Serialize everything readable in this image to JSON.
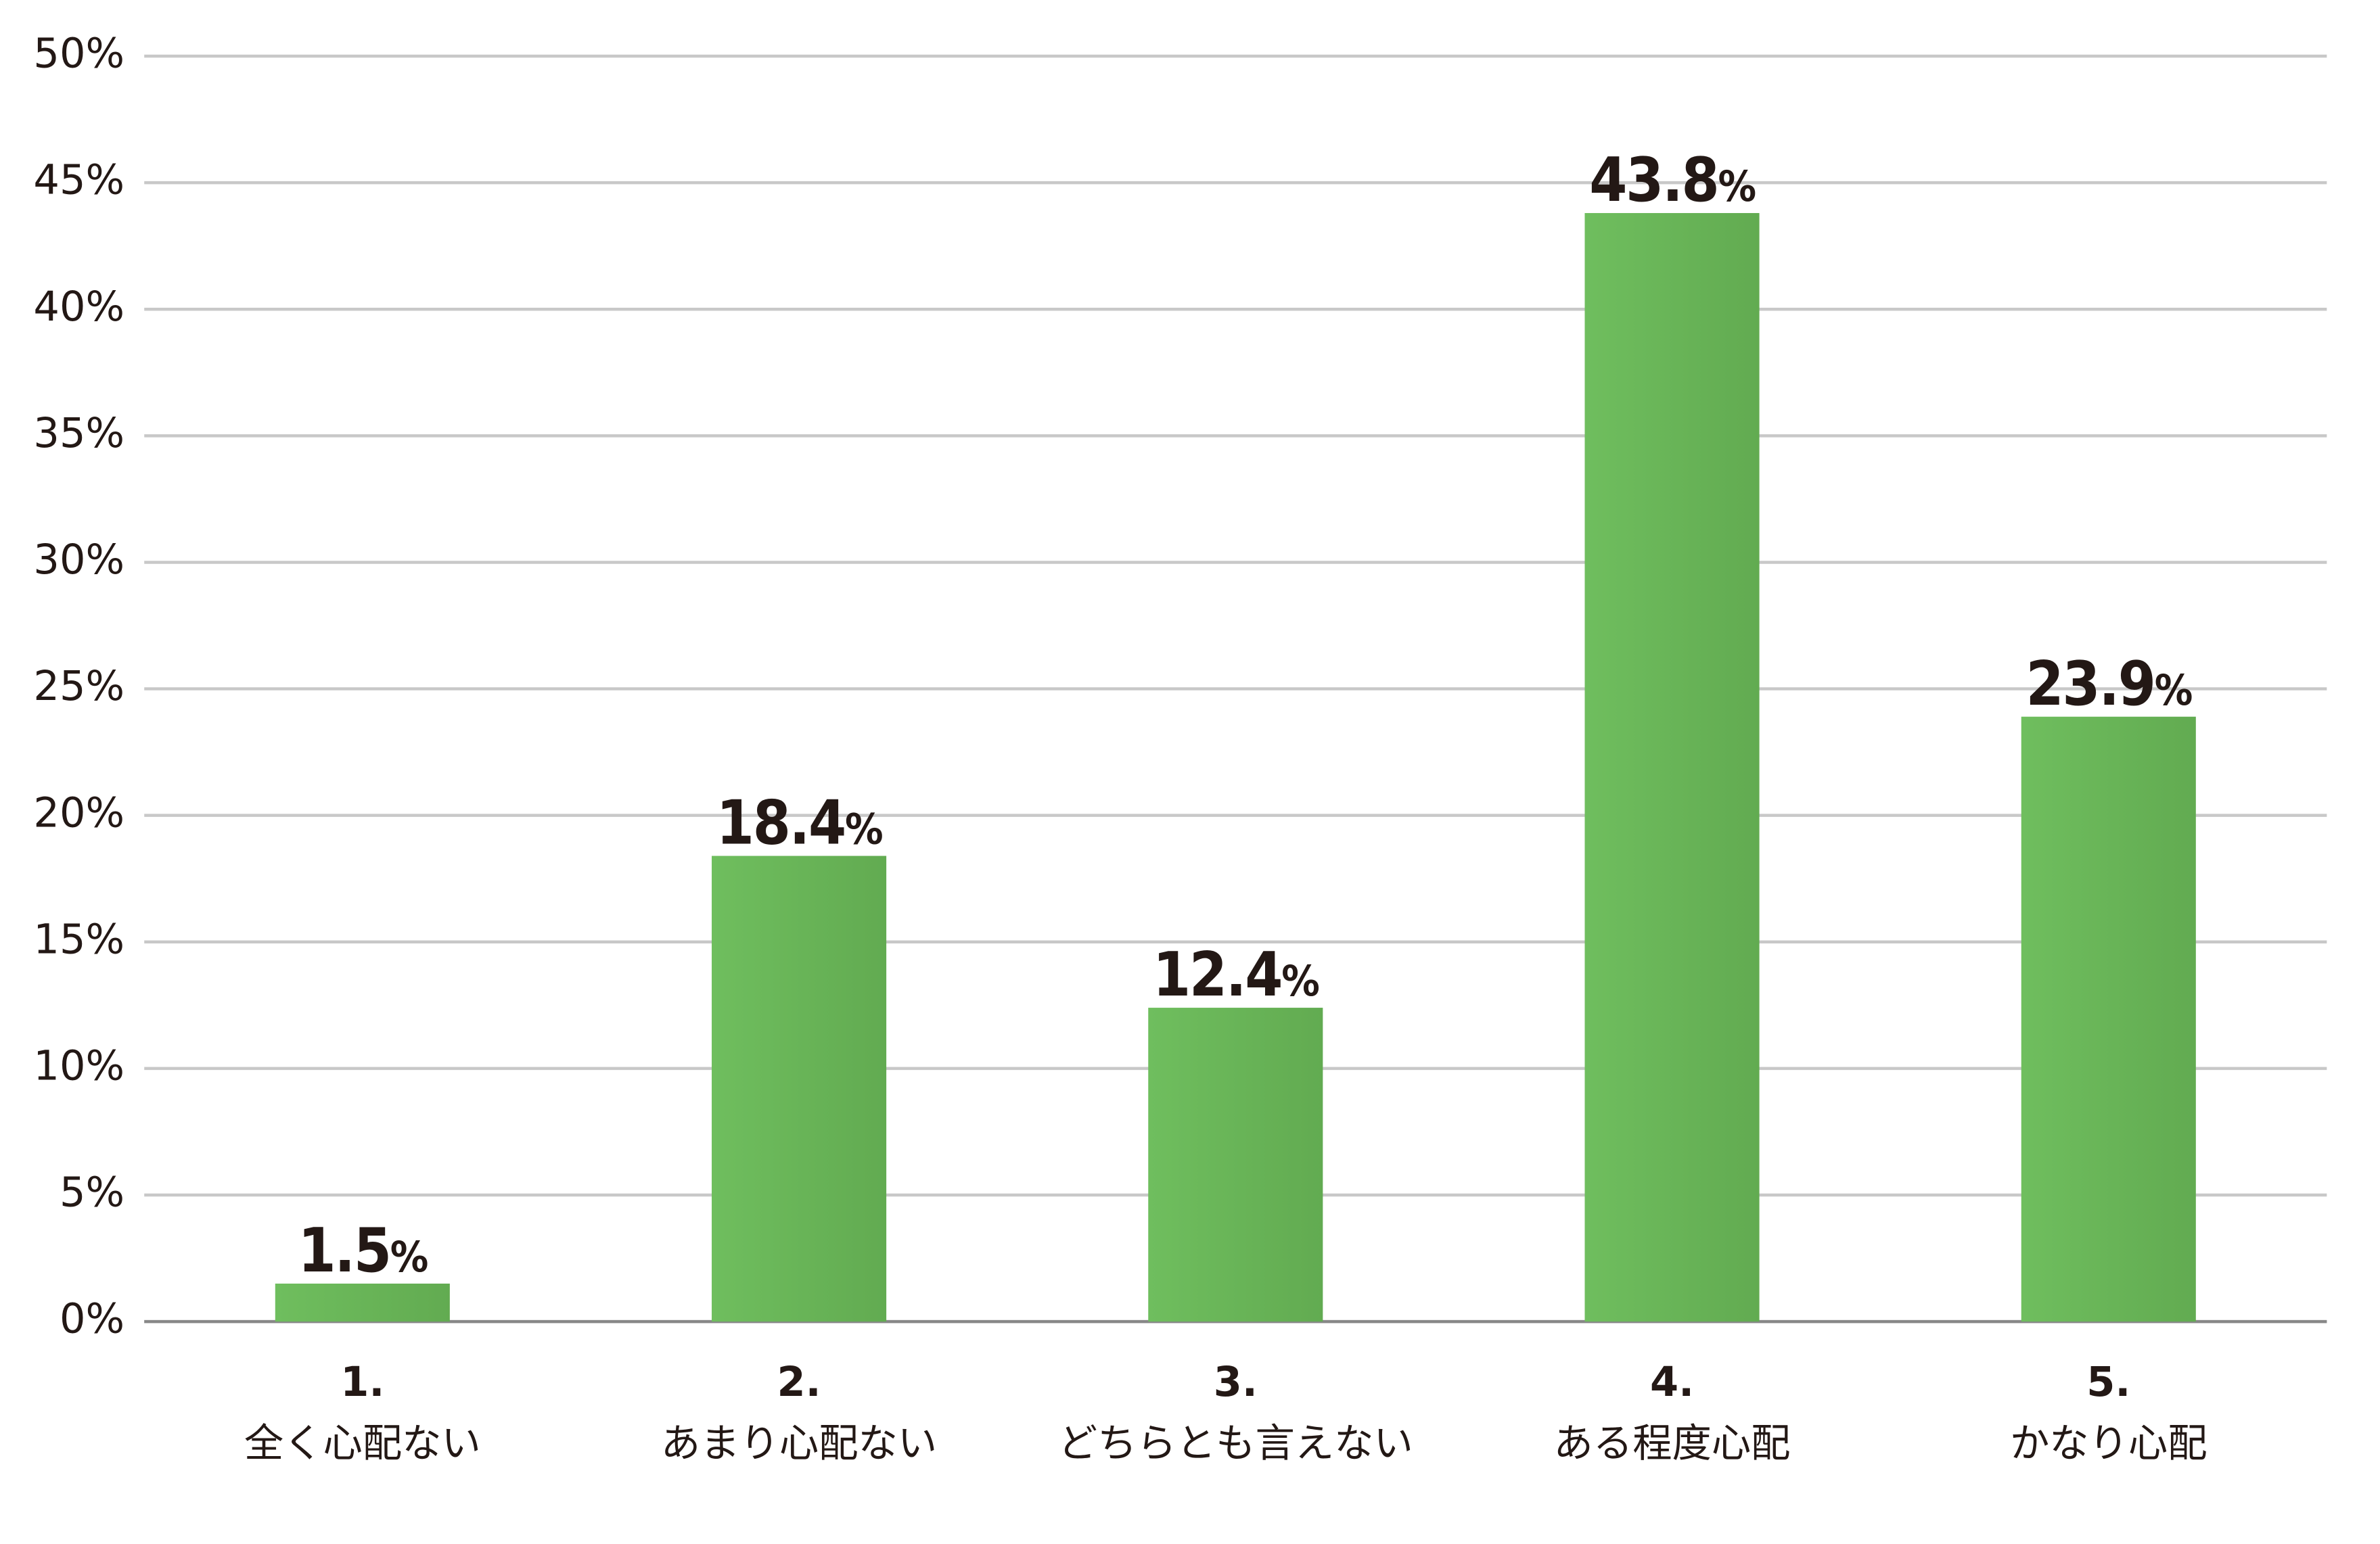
{
  "chart_data": {
    "type": "bar",
    "categories": [
      [
        "1.",
        "全く心配ない"
      ],
      [
        "2.",
        "あまり心配ない"
      ],
      [
        "3.",
        "どちらとも言えない"
      ],
      [
        "4.",
        "ある程度心配"
      ],
      [
        "5.",
        "かなり心配"
      ]
    ],
    "values": [
      1.5,
      18.4,
      12.4,
      43.8,
      23.9
    ],
    "value_labels": [
      "1.5%",
      "18.4%",
      "12.4%",
      "43.8%",
      "23.9%"
    ],
    "color": "#6ab759",
    "ylim": [
      0,
      50
    ],
    "yticks": [
      {
        "value": 0,
        "label": "0%"
      },
      {
        "value": 5,
        "label": "5%"
      },
      {
        "value": 10,
        "label": "10%"
      },
      {
        "value": 15,
        "label": "15%"
      },
      {
        "value": 20,
        "label": "20%"
      },
      {
        "value": 25,
        "label": "25%"
      },
      {
        "value": 30,
        "label": "30%"
      },
      {
        "value": 35,
        "label": "35%"
      },
      {
        "value": 40,
        "label": "40%"
      },
      {
        "value": 45,
        "label": "45%"
      },
      {
        "value": 50,
        "label": "50%"
      }
    ],
    "grid": true
  }
}
